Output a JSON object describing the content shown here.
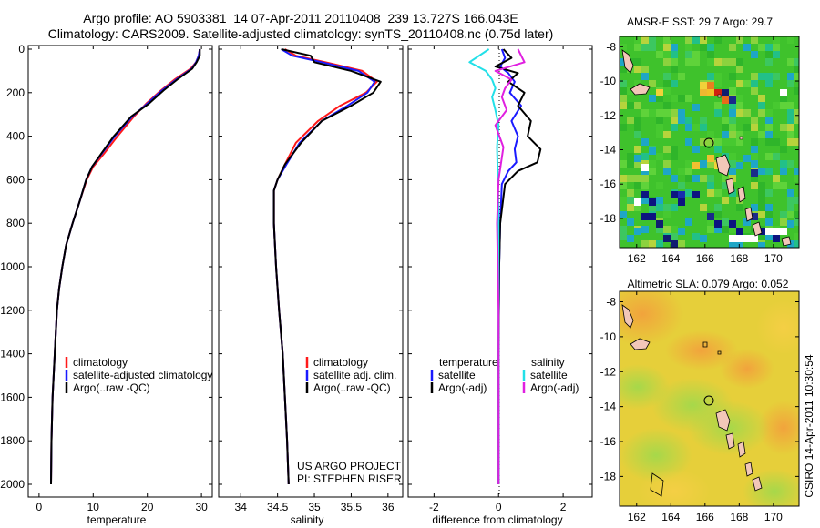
{
  "header": {
    "title_line1": "Argo profile: AO 5903381_14 07-Apr-2011 20110408_239 13.727S 166.043E",
    "title_line2": "Climatology: CARS2009. Satellite-adjusted climatology: synTS_20110408.nc (0.75d later)"
  },
  "colors": {
    "climatology": "#ff1a1a",
    "satellite": "#1a1aff",
    "argo": "#000000",
    "satellite_salinity": "#22e0e8",
    "argo_adj_salinity": "#e020e0"
  },
  "chart_data": [
    {
      "type": "line",
      "name": "temperature-profile",
      "xlabel": "temperature",
      "ylabel": "",
      "xlim": [
        -2,
        32
      ],
      "ylim": [
        2050,
        0
      ],
      "xticks": [
        0,
        10,
        20,
        30
      ],
      "yticks": [
        0,
        200,
        400,
        600,
        800,
        1000,
        1200,
        1400,
        1600,
        1800,
        2000
      ],
      "legend": [
        "climatology",
        "satellite-adjusted climatology",
        "Argo(..raw -QC)"
      ],
      "series": [
        {
          "name": "climatology",
          "color_key": "climatology",
          "x": [
            29.7,
            29.5,
            29.0,
            28.0,
            25.0,
            22.5,
            19.8,
            17.5,
            14.5,
            12.0,
            10.0,
            8.8,
            7.5,
            6.2,
            5.0,
            4.3,
            3.7,
            3.3,
            2.9,
            2.5,
            2.3,
            2.2
          ],
          "y": [
            0,
            30,
            60,
            90,
            140,
            190,
            250,
            310,
            400,
            480,
            540,
            600,
            700,
            800,
            900,
            1000,
            1100,
            1200,
            1400,
            1600,
            1800,
            2000
          ]
        },
        {
          "name": "satellite",
          "color_key": "satellite",
          "x": [
            29.7,
            29.5,
            29.0,
            28.2,
            25.3,
            22.7,
            20.0,
            17.2,
            14.0,
            11.6,
            9.8,
            8.7,
            7.5,
            6.2,
            5.0,
            4.3,
            3.7,
            3.3,
            2.9,
            2.5,
            2.3,
            2.2
          ],
          "y": [
            0,
            30,
            60,
            90,
            140,
            190,
            250,
            310,
            400,
            480,
            540,
            600,
            700,
            800,
            900,
            1000,
            1100,
            1200,
            1400,
            1600,
            1800,
            2000
          ]
        },
        {
          "name": "argo",
          "color_key": "argo",
          "x": [
            29.7,
            29.7,
            29.1,
            28.3,
            25.5,
            23.0,
            20.3,
            17.0,
            13.8,
            11.5,
            9.8,
            8.7,
            7.5,
            6.2,
            5.0,
            4.3,
            3.7,
            3.3,
            2.9,
            2.5,
            2.3,
            2.2
          ],
          "y": [
            0,
            30,
            60,
            90,
            140,
            190,
            250,
            310,
            400,
            480,
            540,
            600,
            700,
            800,
            900,
            1000,
            1100,
            1200,
            1400,
            1600,
            1800,
            2000
          ]
        }
      ]
    },
    {
      "type": "line",
      "name": "salinity-profile",
      "xlabel": "salinity",
      "ylabel": "",
      "xlim": [
        33.7,
        36.2
      ],
      "ylim": [
        2050,
        0
      ],
      "xticks": [
        34,
        34.5,
        35,
        35.5,
        36
      ],
      "yticks": [
        0,
        200,
        400,
        600,
        800,
        1000,
        1200,
        1400,
        1600,
        1800,
        2000
      ],
      "legend": [
        "climatology",
        "satellite adj. clim.",
        "Argo(..raw -QC)"
      ],
      "footnote": [
        "US ARGO PROJECT",
        "PI: STEPHEN RISER"
      ],
      "series": [
        {
          "name": "climatology",
          "color_key": "climatology",
          "x": [
            34.6,
            34.75,
            35.15,
            35.65,
            35.85,
            35.7,
            35.35,
            35.05,
            34.75,
            34.6,
            34.5,
            34.45,
            34.45,
            34.48,
            34.52,
            34.57,
            34.6,
            34.63,
            34.65
          ],
          "y": [
            0,
            30,
            60,
            100,
            150,
            200,
            260,
            330,
            430,
            530,
            600,
            650,
            800,
            1000,
            1200,
            1400,
            1600,
            1800,
            2000
          ]
        },
        {
          "name": "satellite",
          "color_key": "satellite",
          "x": [
            34.55,
            34.7,
            35.1,
            35.6,
            35.82,
            35.72,
            35.45,
            35.1,
            34.8,
            34.62,
            34.5,
            34.45,
            34.45,
            34.48,
            34.52,
            34.57,
            34.6,
            34.63,
            34.65
          ],
          "y": [
            0,
            30,
            60,
            100,
            150,
            200,
            260,
            330,
            430,
            530,
            600,
            650,
            800,
            1000,
            1200,
            1400,
            1600,
            1800,
            2000
          ]
        },
        {
          "name": "argo",
          "color_key": "argo",
          "x": [
            34.55,
            34.95,
            35.0,
            35.5,
            35.9,
            35.8,
            35.5,
            35.1,
            34.82,
            34.6,
            34.5,
            34.45,
            34.45,
            34.48,
            34.52,
            34.57,
            34.6,
            34.63,
            34.65
          ],
          "y": [
            0,
            30,
            60,
            100,
            150,
            200,
            260,
            330,
            430,
            530,
            600,
            650,
            800,
            1000,
            1200,
            1400,
            1600,
            1800,
            2000
          ]
        }
      ]
    },
    {
      "type": "line",
      "name": "difference-profile",
      "xlabel": "difference from climatology",
      "ylabel": "",
      "xlim": [
        -2.8,
        2.9
      ],
      "ylim": [
        2050,
        0
      ],
      "xticks": [
        -2,
        0,
        2
      ],
      "yticks": [
        0,
        200,
        400,
        600,
        800,
        1000,
        1200,
        1400,
        1600,
        1800,
        2000
      ],
      "legend_groups": [
        {
          "heading": "temperature",
          "items": [
            "satellite",
            "Argo(-adj)"
          ]
        },
        {
          "heading": "salinity",
          "items": [
            "satellite",
            "Argo(-adj)"
          ]
        }
      ],
      "series": [
        {
          "name": "temperature satellite",
          "color_key": "satellite",
          "x": [
            0.1,
            0.2,
            0.05,
            0.3,
            0.5,
            0.35,
            0.7,
            0.4,
            0.6,
            0.5,
            0.55,
            0.3,
            0.1,
            0.05,
            0.02,
            0.0,
            0.0,
            0.0
          ],
          "y": [
            0,
            40,
            80,
            110,
            150,
            200,
            260,
            330,
            400,
            460,
            520,
            560,
            620,
            800,
            1000,
            1400,
            1800,
            2000
          ]
        },
        {
          "name": "temperature argo",
          "color_key": "argo",
          "x": [
            0.15,
            0.4,
            -0.1,
            0.6,
            0.3,
            0.8,
            0.6,
            1.0,
            0.9,
            1.3,
            1.2,
            0.6,
            0.2,
            0.05,
            0.02,
            0.0,
            0.0,
            0.0
          ],
          "y": [
            0,
            40,
            80,
            110,
            150,
            200,
            260,
            330,
            400,
            460,
            520,
            560,
            620,
            800,
            1000,
            1400,
            1800,
            2000
          ]
        },
        {
          "name": "salinity satellite",
          "color_key": "satellite_salinity",
          "x": [
            -0.3,
            -0.9,
            -0.4,
            -0.2,
            -0.1,
            -0.2,
            -0.1,
            0.0,
            -0.05,
            -0.02,
            0.0,
            0.0,
            0.0,
            0.0
          ],
          "y": [
            0,
            60,
            100,
            140,
            180,
            220,
            280,
            350,
            450,
            600,
            800,
            1200,
            1600,
            2000
          ]
        },
        {
          "name": "salinity argo",
          "color_key": "argo_adj_salinity",
          "x": [
            0.6,
            0.8,
            -0.1,
            0.4,
            0.2,
            0.1,
            0.25,
            -0.1,
            0.15,
            0.0,
            -0.05,
            0.0,
            0.0,
            0.0
          ],
          "y": [
            0,
            60,
            100,
            140,
            180,
            220,
            280,
            350,
            450,
            600,
            800,
            1200,
            1600,
            2000
          ]
        }
      ]
    },
    {
      "type": "heatmap",
      "name": "amsre-sst-map",
      "title": "AMSR-E SST: 29.7 Argo: 29.7",
      "xlim": [
        161,
        171.5
      ],
      "ylim": [
        -19.7,
        -7.4
      ],
      "xticks": [
        162,
        164,
        166,
        168,
        170
      ],
      "yticks": [
        -8,
        -10,
        -12,
        -14,
        -16,
        -18
      ],
      "argo_position": {
        "lon": 166.043,
        "lat": -13.727
      }
    },
    {
      "type": "heatmap",
      "name": "altimetric-sla-map",
      "title": "Altimetric SLA: 0.079 Argo: 0.052",
      "xlim": [
        161,
        171.5
      ],
      "ylim": [
        -19.7,
        -7.4
      ],
      "xticks": [
        162,
        164,
        166,
        168,
        170
      ],
      "yticks": [
        -8,
        -10,
        -12,
        -14,
        -16,
        -18
      ],
      "argo_position": {
        "lon": 166.043,
        "lat": -13.727
      }
    }
  ],
  "side_label": "CSIRO 14-Apr-2011 10:30:54"
}
